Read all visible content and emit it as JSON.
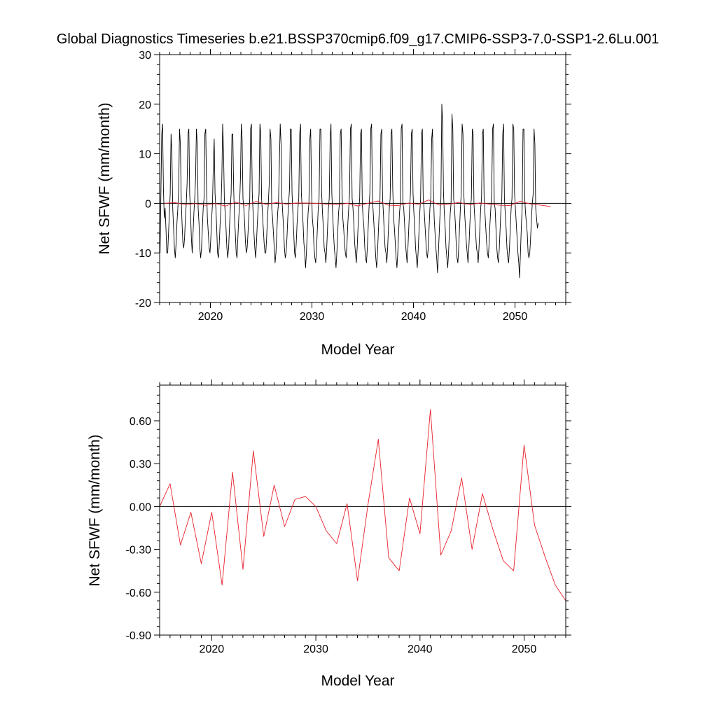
{
  "figure": {
    "title": "Global Diagnostics Timeseries b.e21.BSSP370cmip6.f09_g17.CMIP6-SSP3-7.0-SSP1-2.6Lu.001"
  },
  "chart_data": [
    {
      "type": "line",
      "xlabel": "Model Year",
      "ylabel": "Net SFWF (mm/month)",
      "xlim": [
        2015,
        2055
      ],
      "ylim": [
        -20,
        30
      ],
      "xticks": [
        2020,
        2030,
        2040,
        2050
      ],
      "xtick_labels": [
        "2020",
        "2030",
        "2040",
        "2050"
      ],
      "yticks": [
        -20,
        -10,
        0,
        10,
        20,
        30
      ],
      "ytick_labels": [
        "-20",
        "-10",
        "0",
        "10",
        "20",
        "30"
      ],
      "zero_line": true,
      "grid": false,
      "series": [
        {
          "kind": "monthly",
          "color": "#000000",
          "start": 2015.04,
          "step": 0.0833333,
          "values": [
            -10,
            2,
            14,
            16,
            3,
            -3,
            -1,
            -5,
            -10,
            -10,
            -6,
            -2,
            2,
            14,
            10,
            -1,
            -5,
            -9,
            -11,
            -8,
            -4,
            -1,
            3,
            15,
            12,
            1,
            -4,
            -8,
            -9,
            -7,
            -3,
            0,
            4,
            14,
            15,
            2,
            -2,
            -7,
            -10,
            -6,
            -2,
            1,
            5,
            15,
            12,
            -1,
            -4,
            -9,
            -11,
            -9,
            -5,
            -1,
            1,
            14,
            15,
            3,
            -3,
            -6,
            -9,
            -10,
            -7,
            -3,
            0,
            8,
            13,
            2,
            -1,
            -5,
            -10,
            -11,
            -8,
            -4,
            -1,
            5,
            16,
            11,
            1,
            -2,
            -5,
            -9,
            -11,
            -9,
            -5,
            -1,
            2,
            14,
            14,
            3,
            -3,
            -6,
            -10,
            -11,
            -7,
            -3,
            0,
            5,
            16,
            13,
            1,
            -1,
            -4,
            -8,
            -10,
            -9,
            -6,
            -2,
            1,
            15,
            16,
            2,
            -2,
            -6,
            -9,
            -11,
            -8,
            -4,
            -1,
            2,
            16,
            14,
            1,
            -2,
            -5,
            -8,
            -10,
            -10,
            -7,
            -3,
            0,
            4,
            15,
            13,
            -1,
            -3,
            -6,
            -9,
            -12,
            -10,
            -6,
            -2,
            0,
            8,
            16,
            12,
            1,
            -2,
            -5,
            -9,
            -11,
            -10,
            -7,
            -3,
            0,
            3,
            15,
            15,
            2,
            -2,
            -6,
            -10,
            -11,
            -8,
            -4,
            -1,
            1,
            14,
            16,
            2,
            -1,
            -4,
            -8,
            -10,
            -13,
            -10,
            -6,
            -2,
            0,
            13,
            15,
            3,
            -3,
            -5,
            -9,
            -11,
            -12,
            -9,
            -5,
            -1,
            1,
            15,
            15,
            2,
            -2,
            -5,
            -9,
            -10,
            -12,
            -9,
            -5,
            -1,
            1,
            13,
            16,
            2,
            -2,
            -6,
            -9,
            -11,
            -13,
            -10,
            -6,
            -2,
            0,
            14,
            15,
            3,
            -3,
            -5,
            -8,
            -10,
            -11,
            -8,
            -4,
            -1,
            2,
            15,
            16,
            1,
            -1,
            -4,
            -8,
            -10,
            -12,
            -9,
            -5,
            -1,
            1,
            14,
            15,
            0,
            -3,
            -5,
            -9,
            -11,
            -12,
            -9,
            -5,
            -1,
            2,
            15,
            16,
            1,
            -2,
            -5,
            -8,
            -11,
            -13,
            -10,
            -6,
            -2,
            1,
            14,
            15,
            1,
            -2,
            -6,
            -9,
            -10,
            -12,
            -9,
            -5,
            -1,
            1,
            14,
            15,
            3,
            -3,
            -5,
            -8,
            -11,
            -13,
            -10,
            -6,
            -2,
            0,
            15,
            16,
            0,
            -1,
            -4,
            -8,
            -10,
            -12,
            -9,
            -5,
            -1,
            2,
            14,
            15,
            2,
            -2,
            -5,
            -9,
            -11,
            -13,
            -10,
            -6,
            -2,
            1,
            14,
            15,
            1,
            -1,
            -4,
            -7,
            -10,
            -11,
            -9,
            -5,
            -1,
            1,
            13,
            15,
            3,
            -3,
            -6,
            -9,
            -11,
            -14,
            -10,
            -6,
            -2,
            1,
            20,
            16,
            2,
            -2,
            -5,
            -9,
            -11,
            -13,
            -10,
            -6,
            -2,
            0,
            18,
            15,
            1,
            -1,
            -4,
            -8,
            -11,
            -12,
            -9,
            -5,
            -1,
            2,
            16,
            14,
            2,
            -2,
            -5,
            -8,
            -10,
            -12,
            -9,
            -5,
            -1,
            1,
            15,
            14,
            0,
            -3,
            -6,
            -9,
            -10,
            -12,
            -9,
            -5,
            -1,
            1,
            14,
            15,
            1,
            -2,
            -5,
            -8,
            -10,
            -11,
            -8,
            -4,
            -1,
            2,
            15,
            16,
            0,
            -1,
            -5,
            -9,
            -11,
            -12,
            -9,
            -5,
            -1,
            1,
            14,
            16,
            1,
            -2,
            -5,
            -9,
            -11,
            -12,
            -9,
            -5,
            -1,
            1,
            16,
            15,
            2,
            -1,
            -4,
            -7,
            -10,
            -12,
            -15,
            -10,
            -5,
            -1,
            15,
            15,
            1,
            -2,
            -4,
            -6,
            -10,
            -11,
            -10,
            -7,
            -3,
            0,
            2,
            15,
            12,
            -1,
            -3,
            -5,
            -4
          ]
        },
        {
          "kind": "annual",
          "color": "#e8202a",
          "x": [
            2015.5,
            2016.5,
            2017.5,
            2018.5,
            2019.5,
            2020.5,
            2021.5,
            2022.5,
            2023.5,
            2024.5,
            2025.5,
            2026.5,
            2027.5,
            2028.5,
            2029.5,
            2030.5,
            2031.5,
            2032.5,
            2033.5,
            2034.5,
            2035.5,
            2036.5,
            2037.5,
            2038.5,
            2039.5,
            2040.5,
            2041.5,
            2042.5,
            2043.5,
            2044.5,
            2045.5,
            2046.5,
            2047.5,
            2048.5,
            2049.5,
            2050.5,
            2051.5,
            2052.5,
            2053.5
          ],
          "values": [
            0.02,
            0.16,
            -0.27,
            -0.04,
            -0.4,
            -0.04,
            -0.55,
            0.24,
            -0.44,
            0.39,
            -0.21,
            0.15,
            -0.14,
            0.05,
            0.07,
            0.0,
            -0.17,
            -0.26,
            0.02,
            -0.52,
            0.01,
            0.47,
            -0.36,
            -0.45,
            0.06,
            -0.19,
            0.68,
            -0.34,
            -0.17,
            0.2,
            -0.3,
            0.09,
            -0.16,
            -0.38,
            -0.45,
            0.43,
            -0.13,
            -0.35,
            -0.65
          ]
        }
      ]
    },
    {
      "type": "line",
      "xlabel": "Model Year",
      "ylabel": "Net SFWF (mm/month)",
      "xlim": [
        2015,
        2054
      ],
      "ylim": [
        -0.9,
        0.85
      ],
      "xticks": [
        2020,
        2030,
        2040,
        2050
      ],
      "xtick_labels": [
        "2020",
        "2030",
        "2040",
        "2050"
      ],
      "yticks": [
        -0.9,
        -0.6,
        -0.3,
        0.0,
        0.3,
        0.6
      ],
      "ytick_labels": [
        "-0.90",
        "-0.60",
        "-0.30",
        "0.00",
        "0.30",
        "0.60"
      ],
      "zero_line": true,
      "grid": false,
      "series": [
        {
          "kind": "annual",
          "color": "#e8202a",
          "x": [
            2015,
            2016,
            2017,
            2018,
            2019,
            2020,
            2021,
            2022,
            2023,
            2024,
            2025,
            2026,
            2027,
            2028,
            2029,
            2030,
            2031,
            2032,
            2033,
            2034,
            2035,
            2036,
            2037,
            2038,
            2039,
            2040,
            2041,
            2042,
            2043,
            2044,
            2045,
            2046,
            2047,
            2048,
            2049,
            2050,
            2051,
            2052,
            2053,
            2054
          ],
          "values": [
            0.0,
            0.16,
            -0.27,
            -0.04,
            -0.4,
            -0.04,
            -0.55,
            0.24,
            -0.44,
            0.39,
            -0.21,
            0.15,
            -0.14,
            0.05,
            0.07,
            0.0,
            -0.17,
            -0.26,
            0.02,
            -0.52,
            0.01,
            0.47,
            -0.36,
            -0.45,
            0.06,
            -0.19,
            0.68,
            -0.34,
            -0.17,
            0.2,
            -0.3,
            0.09,
            -0.16,
            -0.38,
            -0.45,
            0.43,
            -0.13,
            -0.35,
            -0.55,
            -0.66
          ]
        }
      ]
    }
  ]
}
